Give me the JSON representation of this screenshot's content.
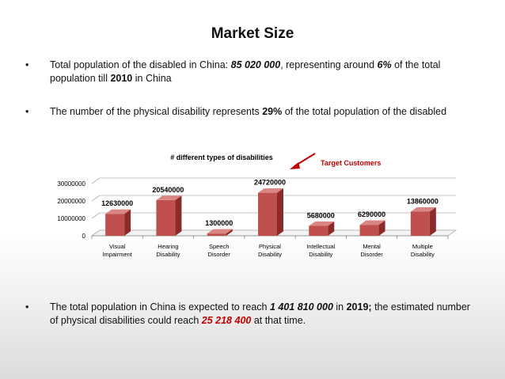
{
  "slide": {
    "title": "Market Size",
    "bullet_symbol": "•",
    "b1": {
      "t1": "Total population of the disabled in China: ",
      "v1": "85 020 000",
      "t2": ", representing around ",
      "v2": "6%",
      "t3": " of the total population till ",
      "v3": "2010",
      "t4": " in China"
    },
    "b2": {
      "t1": "The number of the physical disability represents ",
      "v1": "29%",
      "t2": " of the total population of the disabled"
    },
    "b3": {
      "t1": "The total population in China is expected to reach ",
      "v1": "1 401 810 000",
      "t2": " in ",
      "v2": "2019;",
      "t3": " the estimated number of physical disabilities could reach ",
      "v3": "25 218 400",
      "t4": " at that time."
    },
    "target_label": "Target Customers"
  },
  "colors": {
    "bar": "#c0504d",
    "bar_side": "#8b2c2a",
    "bar_top": "#d98684",
    "highlight": "#c00000"
  },
  "chart_data": {
    "type": "bar",
    "title": "# different types of disabilities",
    "categories": [
      [
        "Visual",
        "Impairment"
      ],
      [
        "Hearing",
        "Disability"
      ],
      [
        "Speech",
        "Disorder"
      ],
      [
        "Physical",
        "Disability"
      ],
      [
        "Intellectual",
        "Disability"
      ],
      [
        "Mental",
        "Disorder"
      ],
      [
        "Multiple",
        "Disability"
      ]
    ],
    "values": [
      12630000,
      20540000,
      1300000,
      24720000,
      5680000,
      6290000,
      13860000
    ],
    "data_labels": [
      "12630000",
      "20540000",
      "1300000",
      "24720000",
      "5680000",
      "6290000",
      "13860000"
    ],
    "ylim": [
      0,
      30000000
    ],
    "yticks": [
      "0",
      "10000000",
      "20000000",
      "30000000"
    ],
    "grid": true,
    "style": "3d-column"
  }
}
